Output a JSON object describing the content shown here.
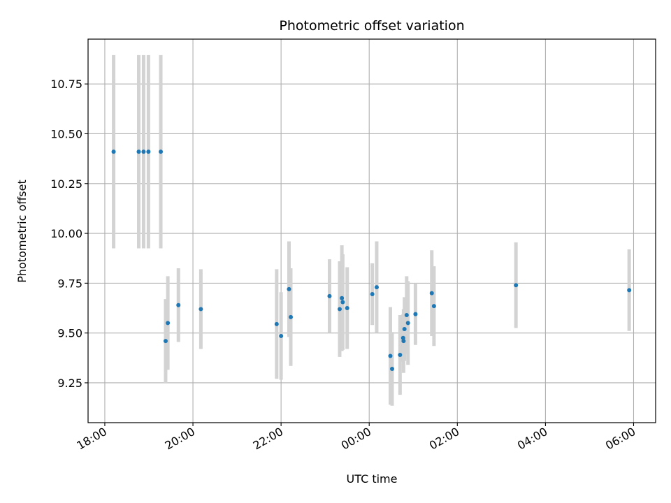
{
  "chart_data": {
    "type": "scatter",
    "title": "Photometric offset variation",
    "xlabel": "UTC time",
    "ylabel": "Photometric offset",
    "x_unit": "hours since 18:00 UTC",
    "xlim": [
      -0.38,
      12.5
    ],
    "ylim": [
      9.05,
      10.975
    ],
    "grid": true,
    "x_ticks": [
      {
        "value": 0,
        "label": "18:00"
      },
      {
        "value": 2,
        "label": "20:00"
      },
      {
        "value": 4,
        "label": "22:00"
      },
      {
        "value": 6,
        "label": "00:00"
      },
      {
        "value": 8,
        "label": "02:00"
      },
      {
        "value": 10,
        "label": "04:00"
      },
      {
        "value": 12,
        "label": "06:00"
      }
    ],
    "y_ticks": [
      {
        "value": 9.25,
        "label": "9.25"
      },
      {
        "value": 9.5,
        "label": "9.50"
      },
      {
        "value": 9.75,
        "label": "9.75"
      },
      {
        "value": 10.0,
        "label": "10.00"
      },
      {
        "value": 10.25,
        "label": "10.25"
      },
      {
        "value": 10.5,
        "label": "10.50"
      },
      {
        "value": 10.75,
        "label": "10.75"
      }
    ],
    "colors": {
      "point": "#1f77b4",
      "errorbar": "#d3d3d3",
      "grid": "#b0b0b0",
      "axis": "#000000"
    },
    "points": [
      {
        "x": 0.2,
        "y": 10.41,
        "err": 0.485
      },
      {
        "x": 0.77,
        "y": 10.41,
        "err": 0.485
      },
      {
        "x": 0.88,
        "y": 10.41,
        "err": 0.485
      },
      {
        "x": 0.99,
        "y": 10.41,
        "err": 0.485
      },
      {
        "x": 1.27,
        "y": 10.41,
        "err": 0.485
      },
      {
        "x": 1.38,
        "y": 9.46,
        "err": 0.21
      },
      {
        "x": 1.43,
        "y": 9.55,
        "err": 0.235
      },
      {
        "x": 1.67,
        "y": 9.64,
        "err": 0.185
      },
      {
        "x": 2.18,
        "y": 9.62,
        "err": 0.2
      },
      {
        "x": 3.9,
        "y": 9.545,
        "err": 0.275
      },
      {
        "x": 4.0,
        "y": 9.485,
        "err": 0.22
      },
      {
        "x": 4.18,
        "y": 9.72,
        "err": 0.24
      },
      {
        "x": 4.22,
        "y": 9.58,
        "err": 0.245
      },
      {
        "x": 5.1,
        "y": 9.685,
        "err": 0.185
      },
      {
        "x": 5.33,
        "y": 9.62,
        "err": 0.24
      },
      {
        "x": 5.38,
        "y": 9.675,
        "err": 0.265
      },
      {
        "x": 5.4,
        "y": 9.655,
        "err": 0.24
      },
      {
        "x": 5.5,
        "y": 9.625,
        "err": 0.205
      },
      {
        "x": 6.07,
        "y": 9.695,
        "err": 0.155
      },
      {
        "x": 6.17,
        "y": 9.73,
        "err": 0.23
      },
      {
        "x": 6.48,
        "y": 9.385,
        "err": 0.245
      },
      {
        "x": 6.52,
        "y": 9.32,
        "err": 0.185
      },
      {
        "x": 6.7,
        "y": 9.39,
        "err": 0.2
      },
      {
        "x": 6.77,
        "y": 9.475,
        "err": 0.12
      },
      {
        "x": 6.78,
        "y": 9.46,
        "err": 0.16
      },
      {
        "x": 6.8,
        "y": 9.52,
        "err": 0.16
      },
      {
        "x": 6.85,
        "y": 9.59,
        "err": 0.195
      },
      {
        "x": 6.88,
        "y": 9.55,
        "err": 0.21
      },
      {
        "x": 7.05,
        "y": 9.595,
        "err": 0.155
      },
      {
        "x": 7.42,
        "y": 9.7,
        "err": 0.215
      },
      {
        "x": 7.47,
        "y": 9.635,
        "err": 0.2
      },
      {
        "x": 9.33,
        "y": 9.74,
        "err": 0.215
      },
      {
        "x": 11.9,
        "y": 9.715,
        "err": 0.205
      }
    ]
  }
}
